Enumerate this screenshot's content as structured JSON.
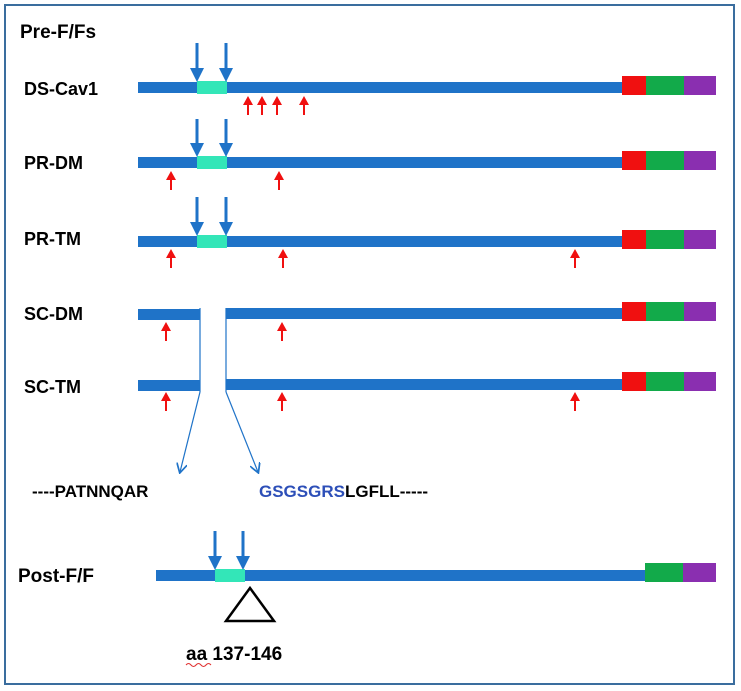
{
  "title": "Pre-F/Fs",
  "constructs": [
    {
      "name": "DS-Cav1"
    },
    {
      "name": "PR-DM"
    },
    {
      "name": "PR-TM"
    },
    {
      "name": "SC-DM"
    },
    {
      "name": "SC-TM"
    }
  ],
  "sequence": {
    "left": "----PATNNQAR",
    "linker": "GSGSGRS",
    "right": "LGFLL-----"
  },
  "post": {
    "name": "Post-F/F",
    "annotation_prefix": "aa",
    "annotation_range": "137-146"
  },
  "colors": {
    "backbone": "#1f73c8",
    "cleaved_peptide": "#33e6b8",
    "domain_red": "#f01010",
    "domain_green": "#12aa4a",
    "domain_purple": "#8a2fb0",
    "mutation_arrow": "#f01010",
    "cleavage_arrow": "#1f73c8",
    "linker_text": "#2d4fb8",
    "frame": "#3a6d9e"
  },
  "icons": {
    "mutation": "red-up-arrow-icon",
    "cleavage": "blue-down-arrow-icon",
    "region_marker": "triangle-icon"
  }
}
